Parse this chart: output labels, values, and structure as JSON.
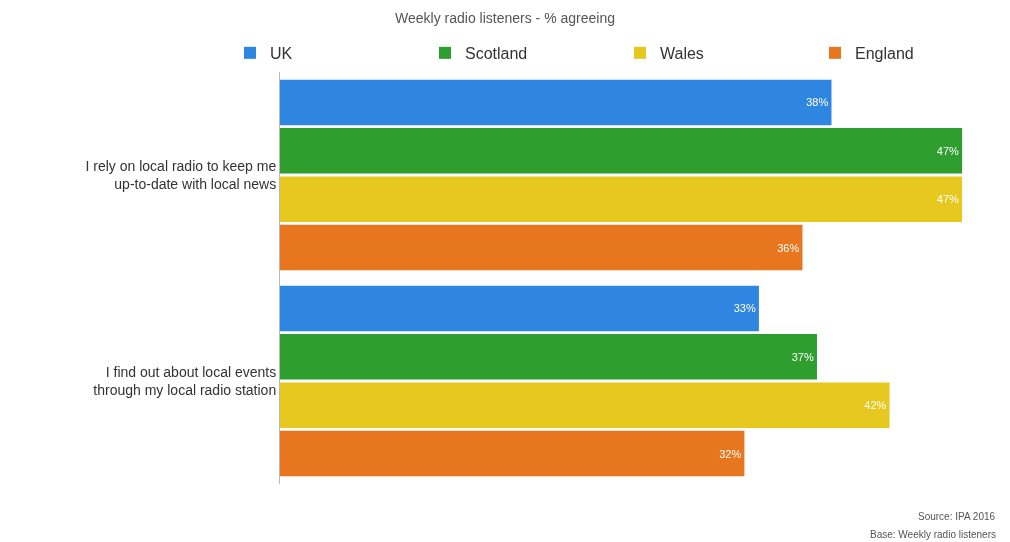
{
  "chart_data": {
    "type": "bar",
    "orientation": "horizontal",
    "title": "Weekly radio listeners - % agreeing",
    "categories": [
      "I rely on local radio to keep me up-to-date with local news",
      "I find out about local events through my local radio station"
    ],
    "series": [
      {
        "name": "UK",
        "color": "#2f86e0",
        "values": [
          38,
          33
        ],
        "value_labels": [
          "38%",
          "33%"
        ]
      },
      {
        "name": "Scotland",
        "color": "#2e9e2e",
        "values": [
          47,
          37
        ],
        "value_labels": [
          "47%",
          "37%"
        ]
      },
      {
        "name": "Wales",
        "color": "#e6c81e",
        "values": [
          47,
          42
        ],
        "value_labels": [
          "47%",
          "42%"
        ]
      },
      {
        "name": "England",
        "color": "#e8761e",
        "values": [
          36,
          32
        ],
        "value_labels": [
          "36%",
          "32%"
        ]
      }
    ],
    "tick_labels": "y",
    "legend": "top",
    "annotations": [
      "Source: IPA 2016",
      "Base: Weekly radio listeners"
    ]
  }
}
